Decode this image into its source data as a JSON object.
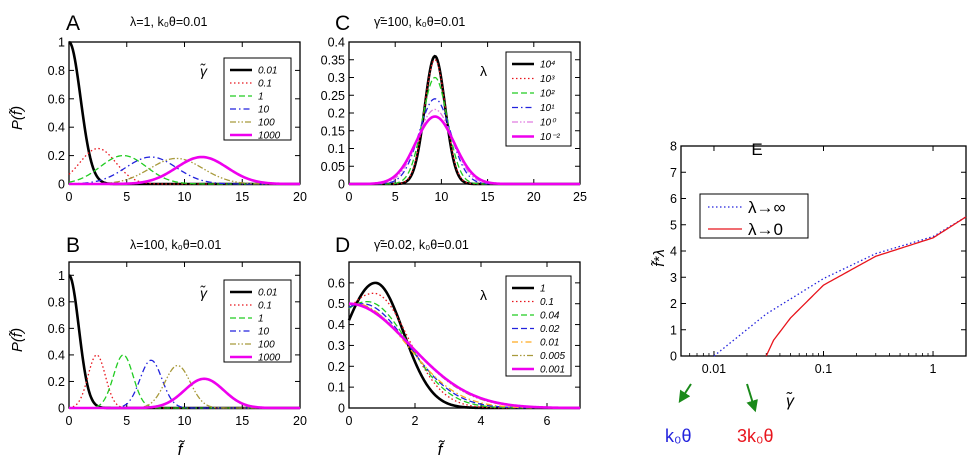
{
  "colors": {
    "black": "#000000",
    "red": "#e8141c",
    "green": "#22cc22",
    "blue": "#2222dd",
    "pink": "#e07ce0",
    "olive": "#a89a3c",
    "magenta": "#ee00ee",
    "orange": "#ffaa22",
    "axis": "#000000"
  },
  "chart_data": [
    {
      "id": "A",
      "type": "line",
      "panel_label": "A",
      "title": "λ=1, k₀θ=0.01",
      "ylabel": "P(f̃)",
      "xlabel": "",
      "xlim": [
        0,
        20
      ],
      "ylim": [
        0,
        1
      ],
      "x_ticks": [
        0,
        5,
        10,
        15,
        20
      ],
      "y_ticks": [
        0,
        0.2,
        0.4,
        0.6,
        0.8,
        1
      ],
      "x_tick_labels": [
        "0",
        "5",
        "10",
        "15",
        "20"
      ],
      "y_tick_labels": [
        "0",
        "0.2",
        "0.4",
        "0.6",
        "0.8",
        "1"
      ],
      "legend_title": "γ̃",
      "legend_position": "top-right",
      "series": [
        {
          "name": "0.01",
          "color": "black",
          "style": "solid-thick",
          "curve": "halfgauss",
          "peak": 1.0,
          "sigma": 1.0
        },
        {
          "name": "0.1",
          "color": "red",
          "style": "dotted",
          "curve": "gauss",
          "mean": 2.5,
          "sigma": 1.55,
          "peak": 0.25
        },
        {
          "name": "1",
          "color": "green",
          "style": "dashed",
          "curve": "gauss",
          "mean": 4.7,
          "sigma": 2.0,
          "peak": 0.2
        },
        {
          "name": "10",
          "color": "blue",
          "style": "dashdot",
          "curve": "gauss",
          "mean": 7.1,
          "sigma": 2.2,
          "peak": 0.19
        },
        {
          "name": "100",
          "color": "olive",
          "style": "dashdotdot",
          "curve": "gauss",
          "mean": 9.3,
          "sigma": 2.3,
          "peak": 0.18
        },
        {
          "name": "1000",
          "color": "magenta",
          "style": "solid-thick",
          "curve": "gauss",
          "mean": 11.5,
          "sigma": 2.2,
          "peak": 0.19
        }
      ]
    },
    {
      "id": "B",
      "type": "line",
      "panel_label": "B",
      "title": "λ=100, k₀θ=0.01",
      "ylabel": "P(f̃)",
      "xlabel": "f̃",
      "xlim": [
        0,
        20
      ],
      "ylim": [
        0,
        1.1
      ],
      "x_ticks": [
        0,
        5,
        10,
        15,
        20
      ],
      "y_ticks": [
        0,
        0.2,
        0.4,
        0.6,
        0.8,
        1
      ],
      "x_tick_labels": [
        "0",
        "5",
        "10",
        "15",
        "20"
      ],
      "y_tick_labels": [
        "0",
        "0.2",
        "0.4",
        "0.6",
        "0.8",
        "1"
      ],
      "legend_title": "γ̃",
      "legend_position": "top-right",
      "series": [
        {
          "name": "0.01",
          "color": "black",
          "style": "solid-thick",
          "curve": "halfgauss",
          "peak": 1.0,
          "sigma": 0.85
        },
        {
          "name": "0.1",
          "color": "red",
          "style": "dotted",
          "curve": "gauss",
          "mean": 2.4,
          "sigma": 0.75,
          "peak": 0.4
        },
        {
          "name": "1",
          "color": "green",
          "style": "dashed",
          "curve": "gauss",
          "mean": 4.7,
          "sigma": 0.85,
          "peak": 0.4
        },
        {
          "name": "10",
          "color": "blue",
          "style": "dashdot",
          "curve": "gauss",
          "mean": 7.1,
          "sigma": 0.95,
          "peak": 0.36
        },
        {
          "name": "100",
          "color": "olive",
          "style": "dashdotdot",
          "curve": "gauss",
          "mean": 9.4,
          "sigma": 1.1,
          "peak": 0.32
        },
        {
          "name": "1000",
          "color": "magenta",
          "style": "solid-thick",
          "curve": "gauss",
          "mean": 11.7,
          "sigma": 1.7,
          "peak": 0.22
        }
      ]
    },
    {
      "id": "C",
      "type": "line",
      "panel_label": "C",
      "title": "γ̃=100, k₀θ=0.01",
      "ylabel": "",
      "xlabel": "",
      "xlim": [
        0,
        25
      ],
      "ylim": [
        0,
        0.4
      ],
      "x_ticks": [
        0,
        5,
        10,
        15,
        20,
        25
      ],
      "y_ticks": [
        0,
        0.05,
        0.1,
        0.15,
        0.2,
        0.25,
        0.3,
        0.35,
        0.4
      ],
      "x_tick_labels": [
        "0",
        "5",
        "10",
        "15",
        "20",
        "25"
      ],
      "y_tick_labels": [
        "0",
        "0.05",
        "0.1",
        "0.15",
        "0.2",
        "0.25",
        "0.3",
        "0.35",
        "0.4"
      ],
      "legend_title": "λ",
      "legend_position": "top-right",
      "series": [
        {
          "name": "10⁴",
          "color": "black",
          "style": "solid-thick",
          "curve": "gauss",
          "mean": 9.3,
          "sigma": 1.1,
          "peak": 0.36
        },
        {
          "name": "10³",
          "color": "red",
          "style": "dotted",
          "curve": "gauss",
          "mean": 9.3,
          "sigma": 1.15,
          "peak": 0.35
        },
        {
          "name": "10²",
          "color": "green",
          "style": "dashed",
          "curve": "gauss",
          "mean": 9.3,
          "sigma": 1.35,
          "peak": 0.3
        },
        {
          "name": "10¹",
          "color": "blue",
          "style": "dashdot",
          "curve": "gauss",
          "mean": 9.3,
          "sigma": 1.7,
          "peak": 0.24
        },
        {
          "name": "10⁰",
          "color": "pink",
          "style": "dashdotdot",
          "curve": "gauss",
          "mean": 9.3,
          "sigma": 1.9,
          "peak": 0.21
        },
        {
          "name": "10⁻²",
          "color": "magenta",
          "style": "solid-thick",
          "curve": "gauss",
          "mean": 9.3,
          "sigma": 2.1,
          "peak": 0.19
        }
      ]
    },
    {
      "id": "D",
      "type": "line",
      "panel_label": "D",
      "title": "γ̃=0.02, k₀θ=0.01",
      "ylabel": "",
      "xlabel": "f̃",
      "xlim": [
        0,
        7
      ],
      "ylim": [
        0,
        0.7
      ],
      "x_ticks": [
        0,
        2,
        4,
        6
      ],
      "y_ticks": [
        0,
        0.1,
        0.2,
        0.3,
        0.4,
        0.5,
        0.6
      ],
      "x_tick_labels": [
        "0",
        "2",
        "4",
        "6"
      ],
      "y_tick_labels": [
        "0",
        "0.1",
        "0.2",
        "0.3",
        "0.4",
        "0.5",
        "0.6"
      ],
      "legend_title": "λ",
      "legend_position": "top-right",
      "series": [
        {
          "name": "1",
          "color": "black",
          "style": "solid-thick",
          "curve": "asym",
          "mean": 0.8,
          "left_sigma": 0.95,
          "right_sigma": 0.85,
          "peak": 0.6
        },
        {
          "name": "0.1",
          "color": "red",
          "style": "dotted",
          "curve": "asym",
          "mean": 0.75,
          "left_sigma": 1.4,
          "right_sigma": 1.05,
          "peak": 0.55
        },
        {
          "name": "0.04",
          "color": "green",
          "style": "dashed",
          "curve": "asym",
          "mean": 0.55,
          "left_sigma": 1.5,
          "right_sigma": 1.25,
          "peak": 0.51
        },
        {
          "name": "0.02",
          "color": "blue",
          "style": "dashed",
          "curve": "asym",
          "mean": 0.4,
          "left_sigma": 1.5,
          "right_sigma": 1.4,
          "peak": 0.5
        },
        {
          "name": "0.01",
          "color": "orange",
          "style": "dashdot",
          "curve": "asym",
          "mean": 0.2,
          "left_sigma": 1.5,
          "right_sigma": 1.55,
          "peak": 0.5
        },
        {
          "name": "0.005",
          "color": "olive",
          "style": "dashdotdot",
          "curve": "asym",
          "mean": 0.1,
          "left_sigma": 1.5,
          "right_sigma": 1.75,
          "peak": 0.5
        },
        {
          "name": "0.001",
          "color": "magenta",
          "style": "solid-thick",
          "curve": "decay",
          "peak": 0.5,
          "scale": 2.6
        }
      ]
    },
    {
      "id": "E",
      "type": "line",
      "panel_label": "E",
      "title": "",
      "ylabel": "f̃*λ",
      "xlabel": "γ̃",
      "x_scale": "log",
      "xlim": [
        0.005,
        2
      ],
      "ylim": [
        0,
        8
      ],
      "x_ticks": [
        0.01,
        0.1,
        1
      ],
      "y_ticks": [
        0,
        1,
        2,
        3,
        4,
        5,
        6,
        7,
        8
      ],
      "x_tick_labels": [
        "0.01",
        "0.1",
        "1"
      ],
      "y_tick_labels": [
        "0",
        "1",
        "2",
        "3",
        "4",
        "5",
        "6",
        "7",
        "8"
      ],
      "legend_position": "top-left",
      "series": [
        {
          "name": "λ→∞",
          "color": "blue",
          "style": "dotted",
          "x": [
            0.01,
            0.03,
            0.1,
            0.3,
            1,
            2
          ],
          "y": [
            0,
            1.6,
            2.95,
            3.9,
            4.55,
            5.3
          ]
        },
        {
          "name": "λ→0",
          "color": "red",
          "style": "solid",
          "x": [
            0.03,
            0.035,
            0.05,
            0.1,
            0.3,
            1,
            2
          ],
          "y": [
            0,
            0.6,
            1.45,
            2.7,
            3.8,
            4.5,
            5.3
          ]
        }
      ],
      "annotations": [
        {
          "text": "k₀θ",
          "color": "blue",
          "points_to_x": 0.01
        },
        {
          "text": "3k₀θ",
          "color": "red",
          "points_to_x": 0.03
        }
      ]
    }
  ]
}
